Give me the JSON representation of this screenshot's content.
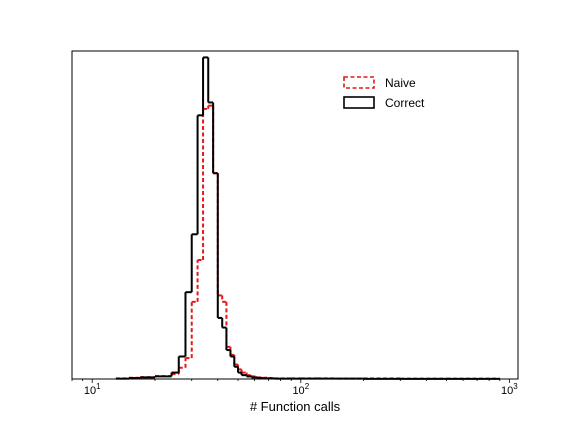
{
  "chart_data": {
    "type": "histogram",
    "title": "",
    "xlabel": "# Function calls",
    "ylabel": "",
    "xscale": "log",
    "xlim": [
      8,
      1100
    ],
    "ylim": [
      0,
      1.02
    ],
    "yticks_visible": false,
    "grid": false,
    "legend": {
      "placement": "top-right",
      "entries": [
        {
          "label": "Naive",
          "style": "dashed",
          "color": "#e31a1c"
        },
        {
          "label": "Correct",
          "style": "solid",
          "color": "#000000"
        }
      ]
    },
    "xticks": [
      {
        "value": 10,
        "base": "10",
        "exp": "1"
      },
      {
        "value": 100,
        "base": "10",
        "exp": "2"
      },
      {
        "value": 1000,
        "base": "10",
        "exp": "3"
      }
    ],
    "bins": [
      13,
      15,
      17,
      20,
      24,
      26,
      28,
      30,
      32,
      34,
      36,
      38,
      40,
      42,
      44,
      46,
      48,
      50,
      52,
      55,
      58,
      62,
      66,
      70,
      75,
      80,
      90,
      100,
      120,
      150,
      200,
      300,
      500,
      900
    ],
    "series": [
      {
        "name": "Naive",
        "color": "#e31a1c",
        "style": "dashed",
        "values": [
          0.002,
          0.004,
          0.006,
          0.009,
          0.015,
          0.035,
          0.065,
          0.24,
          0.37,
          0.84,
          0.85,
          0.64,
          0.26,
          0.24,
          0.1,
          0.075,
          0.045,
          0.03,
          0.02,
          0.012,
          0.008,
          0.005,
          0.004,
          0.003,
          0.002,
          0.002,
          0.002,
          0.002,
          0.002,
          0.001,
          0.002,
          0.001,
          0.001
        ]
      },
      {
        "name": "Correct",
        "color": "#000000",
        "style": "solid",
        "values": [
          0.001,
          0.003,
          0.005,
          0.008,
          0.02,
          0.07,
          0.27,
          0.45,
          0.82,
          1.0,
          0.86,
          0.64,
          0.19,
          0.16,
          0.09,
          0.07,
          0.038,
          0.02,
          0.012,
          0.008,
          0.005,
          0.003,
          0.002,
          0.002,
          0.001,
          0.001,
          0.001,
          0.001,
          0.001,
          0.001,
          0.0005,
          0.0005,
          0.0005
        ]
      }
    ]
  }
}
